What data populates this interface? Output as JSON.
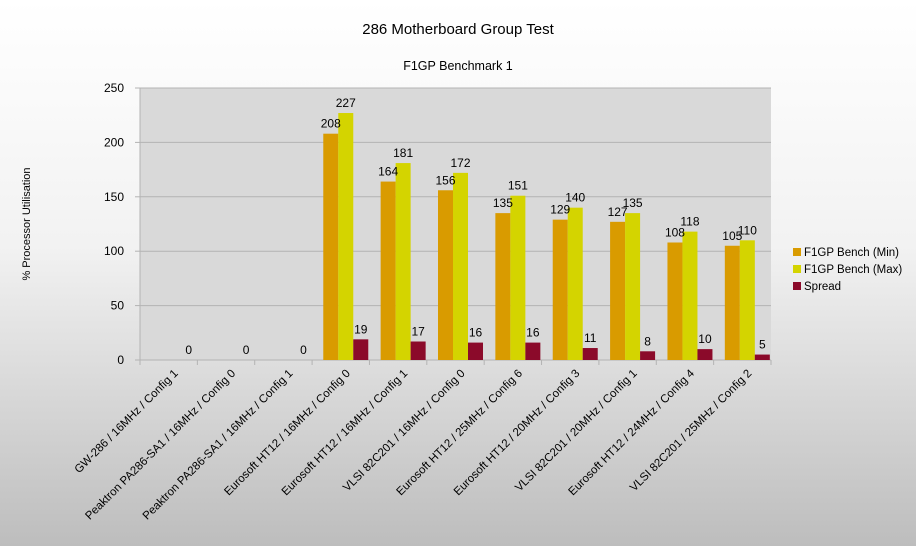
{
  "chart_data": {
    "type": "bar",
    "title": "286 Motherboard Group Test",
    "subtitle": "F1GP Benchmark 1",
    "xlabel": "",
    "ylabel": "% Processor Utilisation",
    "ylim": [
      0,
      250
    ],
    "yticks": [
      0,
      50,
      100,
      150,
      200,
      250
    ],
    "grid": true,
    "legend_position": "right",
    "categories": [
      "GW-286 / 16MHz / Config 1",
      "Peaktron PA286-SA1 / 16MHz / Config 0",
      "Peaktron PA286-SA1 / 16MHz / Config 1",
      "Eurosoft HT12 / 16MHz / Config 0",
      "Eurosoft HT12 / 16MHz / Config 1",
      "VLSI 82C201 / 16MHz / Config 0",
      "Eurosoft HT12 / 25MHz / Config 6",
      "Eurosoft HT12 / 20MHz / Config 3",
      "VLSI 82C201 / 20MHz / Config 1",
      "Eurosoft HT12 / 24MHz / Config 4",
      "VLSI 82C201 / 25MHz / Config 2"
    ],
    "series": [
      {
        "name": "F1GP Bench (Min)",
        "color": "#d99b00",
        "values": [
          null,
          null,
          null,
          208,
          164,
          156,
          135,
          129,
          127,
          108,
          105
        ]
      },
      {
        "name": "F1GP Bench (Max)",
        "color": "#d4d400",
        "values": [
          null,
          null,
          null,
          227,
          181,
          172,
          151,
          140,
          135,
          118,
          110
        ]
      },
      {
        "name": "Spread",
        "color": "#8b0a2a",
        "values": [
          0,
          0,
          0,
          19,
          17,
          16,
          16,
          11,
          8,
          10,
          5
        ]
      }
    ]
  }
}
